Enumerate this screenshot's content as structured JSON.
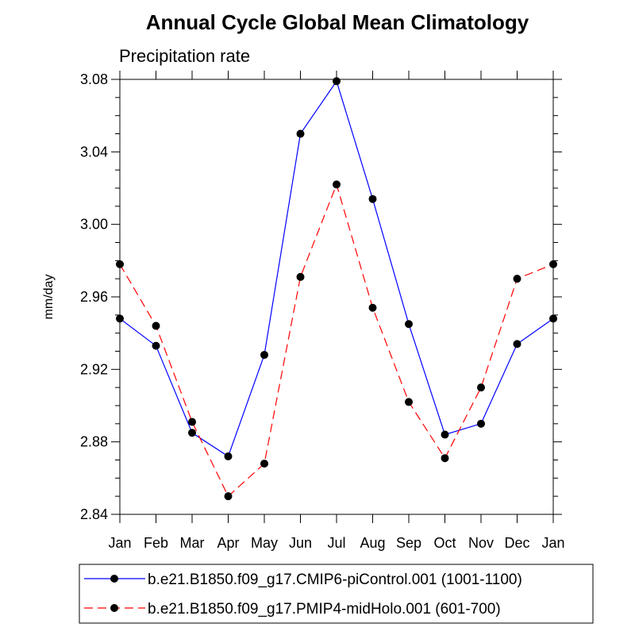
{
  "chart_data": {
    "type": "line",
    "title": "Annual Cycle Global Mean Climatology",
    "subtitle": "Precipitation rate",
    "xlabel": "",
    "ylabel": "mm/day",
    "categories": [
      "Jan",
      "Feb",
      "Mar",
      "Apr",
      "May",
      "Jun",
      "Jul",
      "Aug",
      "Sep",
      "Oct",
      "Nov",
      "Dec",
      "Jan"
    ],
    "ylim": [
      2.84,
      3.08
    ],
    "yticks": [
      "2.84",
      "2.88",
      "2.92",
      "2.96",
      "3.00",
      "3.04",
      "3.08"
    ],
    "grid": false,
    "legend_position": "bottom",
    "series": [
      {
        "name": "b.e21.B1850.f09_g17.CMIP6-piControl.001 (1001-1100)",
        "color": "#0000ff",
        "line_style": "solid",
        "values": [
          2.948,
          2.933,
          2.885,
          2.872,
          2.928,
          3.05,
          3.079,
          3.014,
          2.945,
          2.884,
          2.89,
          2.934,
          2.948
        ]
      },
      {
        "name": "b.e21.B1850.f09_g17.PMIP4-midHolo.001 (601-700)",
        "color": "#ff0000",
        "line_style": "dashed",
        "values": [
          2.978,
          2.944,
          2.891,
          2.85,
          2.868,
          2.971,
          3.022,
          2.954,
          2.902,
          2.871,
          2.91,
          2.97,
          2.978
        ]
      }
    ]
  }
}
